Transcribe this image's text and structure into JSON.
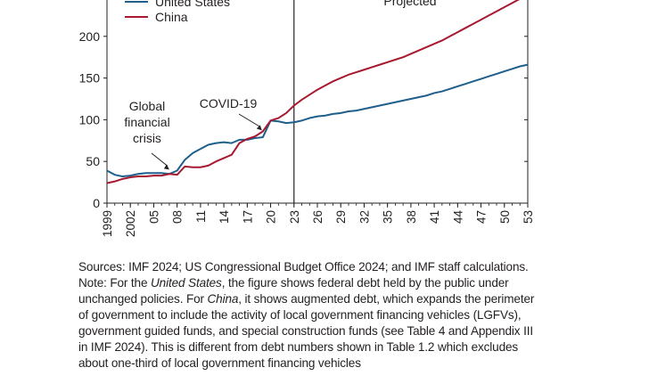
{
  "chart_data": {
    "type": "line",
    "title": "",
    "xlabel": "",
    "ylabel": "",
    "ylim": [
      0,
      250
    ],
    "yticks": [
      0,
      50,
      100,
      150,
      200
    ],
    "xlim": [
      1999,
      2053
    ],
    "xtick_values": [
      1999,
      2002,
      2005,
      2008,
      2011,
      2014,
      2017,
      2020,
      2023,
      2026,
      2029,
      2032,
      2035,
      2038,
      2041,
      2044,
      2047,
      2050,
      2053
    ],
    "xtick_labels": [
      "1999",
      "2002",
      "05",
      "08",
      "11",
      "14",
      "17",
      "20",
      "23",
      "26",
      "29",
      "32",
      "35",
      "38",
      "41",
      "44",
      "47",
      "50",
      "53"
    ],
    "legend_position": "top-left",
    "projection_start": 2023,
    "projection_label": "Projected",
    "series": [
      {
        "name": "United States",
        "color": "#1f5f8b",
        "x": [
          1999,
          2000,
          2001,
          2002,
          2003,
          2004,
          2005,
          2006,
          2007,
          2008,
          2009,
          2010,
          2011,
          2012,
          2013,
          2014,
          2015,
          2016,
          2017,
          2018,
          2019,
          2020,
          2021,
          2022,
          2023,
          2024,
          2025,
          2026,
          2027,
          2028,
          2029,
          2030,
          2031,
          2032,
          2033,
          2034,
          2035,
          2036,
          2037,
          2038,
          2039,
          2040,
          2041,
          2042,
          2043,
          2044,
          2045,
          2046,
          2047,
          2048,
          2049,
          2050,
          2051,
          2052,
          2053
        ],
        "values": [
          39,
          34,
          32,
          33,
          35,
          36,
          36,
          36,
          35,
          39,
          52,
          60,
          65,
          70,
          72,
          73,
          72,
          76,
          76,
          78,
          79,
          99,
          98,
          96,
          97,
          99,
          102,
          104,
          105,
          107,
          108,
          110,
          111,
          113,
          115,
          117,
          119,
          121,
          123,
          125,
          127,
          129,
          132,
          134,
          137,
          140,
          143,
          146,
          149,
          152,
          155,
          158,
          161,
          164,
          166
        ]
      },
      {
        "name": "China",
        "color": "#a6192e",
        "x": [
          1999,
          2000,
          2001,
          2002,
          2003,
          2004,
          2005,
          2006,
          2007,
          2008,
          2009,
          2010,
          2011,
          2012,
          2013,
          2014,
          2015,
          2016,
          2017,
          2018,
          2019,
          2020,
          2021,
          2022,
          2023,
          2024,
          2025,
          2026,
          2027,
          2028,
          2029,
          2030,
          2031,
          2032,
          2033,
          2034,
          2035,
          2036,
          2037,
          2038,
          2039,
          2040,
          2041,
          2042,
          2043,
          2044,
          2045,
          2046,
          2047,
          2048,
          2049,
          2050,
          2051,
          2052,
          2053
        ],
        "values": [
          24,
          26,
          29,
          31,
          32,
          32,
          33,
          33,
          35,
          34,
          44,
          43,
          43,
          45,
          50,
          54,
          58,
          72,
          77,
          80,
          86,
          99,
          102,
          108,
          117,
          124,
          130,
          136,
          141,
          146,
          150,
          154,
          157,
          160,
          163,
          166,
          169,
          172,
          175,
          179,
          183,
          187,
          191,
          195,
          200,
          205,
          210,
          215,
          220,
          225,
          230,
          235,
          240,
          245,
          250
        ]
      }
    ],
    "annotations": [
      {
        "text": [
          "Global",
          "financial",
          "crisis"
        ],
        "x": 2007,
        "y": 37
      },
      {
        "text": [
          "COVID-19"
        ],
        "x": 2019,
        "y": 84
      }
    ]
  },
  "notes": {
    "sources": "Sources: IMF 2024; US Congressional Budget Office 2024; and IMF staff calculations.",
    "note_prefix": "Note: For the ",
    "note_us": "United States",
    "note_mid": ", the figure shows federal debt held by the public under unchanged policies. For ",
    "note_china": "China",
    "note_rest": ", it shows augmented debt, which expands the perimeter of government to include the activity of local government financing vehicles (LGFVs), government guided funds, and special construction funds (see Table 4 and Appendix III in IMF 2024). This is different from debt numbers shown in Table 1.2 which excludes about one-third of local government financing vehicles"
  }
}
